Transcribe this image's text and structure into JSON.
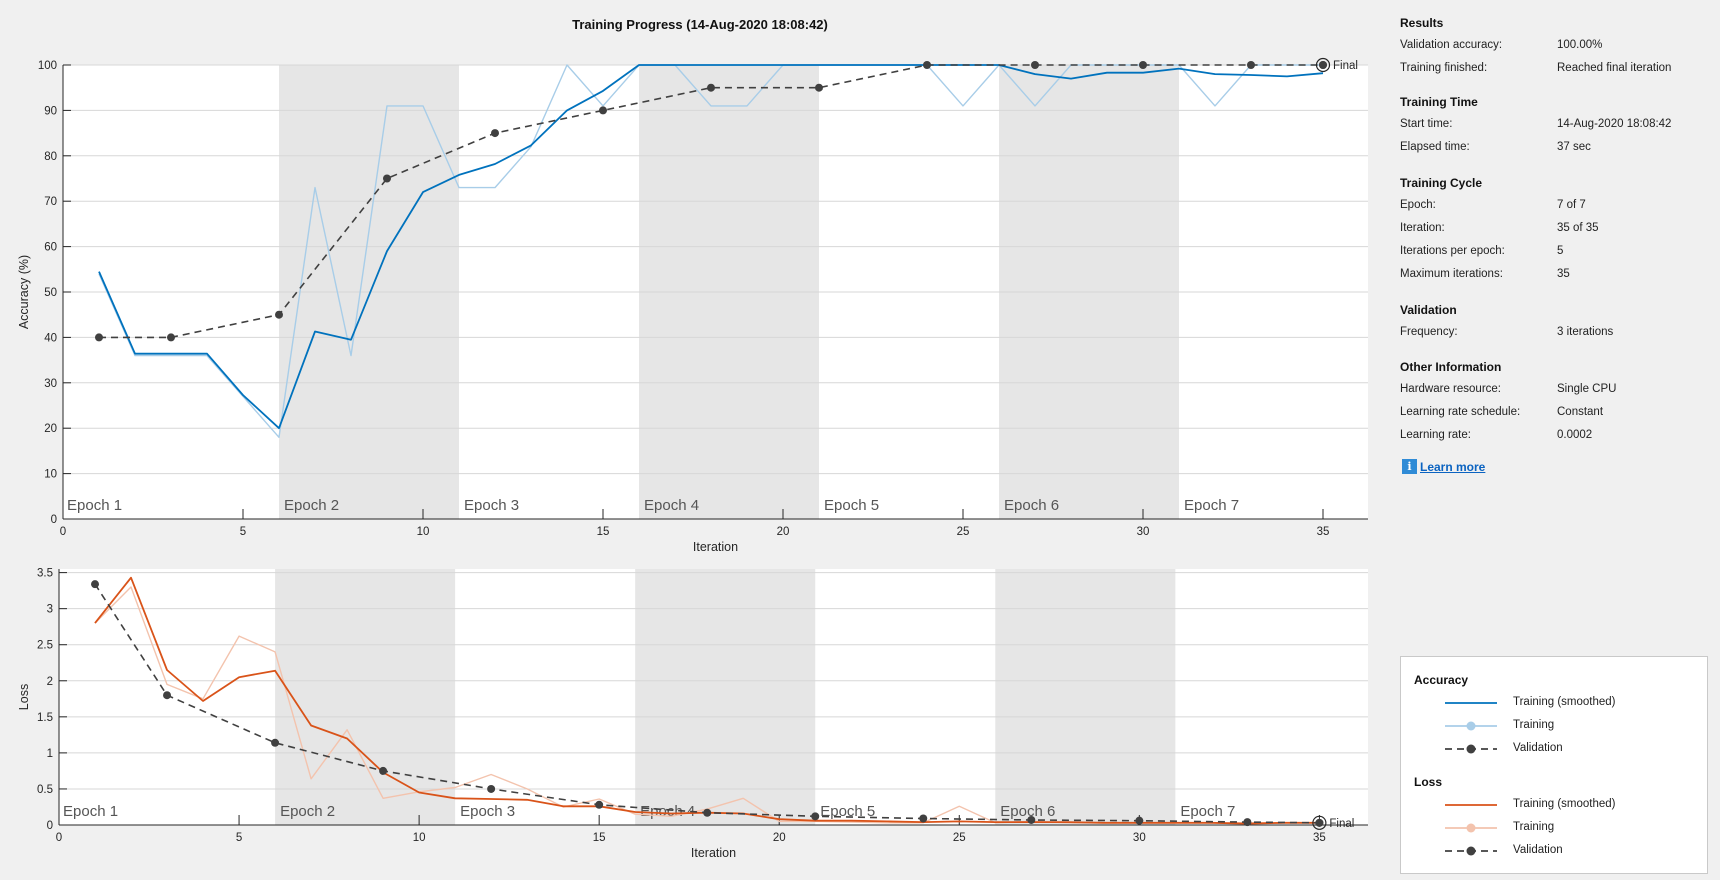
{
  "title": "Training Progress (14-Aug-2020 18:08:42)",
  "colors": {
    "accuracy_smoothed": "#0072bd",
    "accuracy_raw": "#a8cde8",
    "loss_smoothed": "#d95319",
    "loss_raw": "#f3c3ad",
    "validation": "#404040",
    "epoch_shade": "#e6e6e6"
  },
  "panel": {
    "sections": [
      {
        "title": "Results",
        "rows": [
          {
            "label": "Validation accuracy:",
            "value": "100.00%"
          },
          {
            "label": "Training finished:",
            "value": "Reached final iteration"
          }
        ]
      },
      {
        "title": "Training Time",
        "rows": [
          {
            "label": "Start time:",
            "value": "14-Aug-2020 18:08:42"
          },
          {
            "label": "Elapsed time:",
            "value": "37 sec"
          }
        ]
      },
      {
        "title": "Training Cycle",
        "rows": [
          {
            "label": "Epoch:",
            "value": "7 of 7"
          },
          {
            "label": "Iteration:",
            "value": "35 of 35"
          },
          {
            "label": "Iterations per epoch:",
            "value": "5"
          },
          {
            "label": "Maximum iterations:",
            "value": "35"
          }
        ]
      },
      {
        "title": "Validation",
        "rows": [
          {
            "label": "Frequency:",
            "value": "3 iterations"
          }
        ]
      },
      {
        "title": "Other Information",
        "rows": [
          {
            "label": "Hardware resource:",
            "value": "Single CPU"
          },
          {
            "label": "Learning rate schedule:",
            "value": "Constant"
          },
          {
            "label": "Learning rate:",
            "value": "0.0002"
          }
        ]
      }
    ],
    "learn_more": "Learn more",
    "info_icon": "info-icon"
  },
  "legend": {
    "groups": [
      {
        "title": "Accuracy",
        "items": [
          {
            "label": "Training (smoothed)",
            "style": "acc-smooth"
          },
          {
            "label": "Training",
            "style": "acc-raw"
          },
          {
            "label": "Validation",
            "style": "val"
          }
        ]
      },
      {
        "title": "Loss",
        "items": [
          {
            "label": "Training (smoothed)",
            "style": "loss-smooth"
          },
          {
            "label": "Training",
            "style": "loss-raw"
          },
          {
            "label": "Validation",
            "style": "val"
          }
        ]
      }
    ]
  },
  "chart_data": [
    {
      "type": "line",
      "id": "accuracy",
      "xlabel": "Iteration",
      "ylabel": "Accuracy (%)",
      "xlim": [
        0,
        36.25
      ],
      "ylim": [
        0,
        100
      ],
      "xticks": [
        0,
        5,
        10,
        15,
        20,
        25,
        30,
        35
      ],
      "yticks": [
        0,
        10,
        20,
        30,
        40,
        50,
        60,
        70,
        80,
        90,
        100
      ],
      "grid": true,
      "epochs": [
        "Epoch 1",
        "Epoch 2",
        "Epoch 3",
        "Epoch 4",
        "Epoch 5",
        "Epoch 6",
        "Epoch 7"
      ],
      "final_label": "Final",
      "series": [
        {
          "name": "Training",
          "style": "raw",
          "x": [
            1,
            2,
            3,
            4,
            5,
            6,
            7,
            8,
            9,
            10,
            11,
            12,
            13,
            14,
            15,
            16,
            17,
            18,
            19,
            20,
            21,
            22,
            23,
            24,
            25,
            26,
            27,
            28,
            29,
            30,
            31,
            32,
            33,
            34,
            35
          ],
          "y": [
            54,
            36,
            36,
            36,
            27,
            18,
            73,
            36,
            91,
            91,
            73,
            73,
            82,
            100,
            91,
            100,
            100,
            91,
            91,
            100,
            100,
            100,
            100,
            100,
            91,
            100,
            91,
            100,
            100,
            100,
            100,
            91,
            100,
            100,
            100
          ]
        },
        {
          "name": "Training (smoothed)",
          "style": "smooth",
          "x": [
            1,
            2,
            3,
            4,
            5,
            6,
            7,
            8,
            9,
            10,
            11,
            12,
            13,
            14,
            15,
            16,
            17,
            18,
            19,
            20,
            21,
            22,
            23,
            24,
            25,
            26,
            27,
            28,
            29,
            30,
            31,
            32,
            33,
            34,
            35
          ],
          "y": [
            54.5,
            36.4,
            36.4,
            36.4,
            27.3,
            20,
            41.3,
            39.5,
            59,
            72,
            75.8,
            78.2,
            82.3,
            90,
            94.3,
            100,
            100,
            100,
            100,
            100,
            100,
            100,
            100,
            100,
            100,
            100,
            98,
            97,
            98.3,
            98.3,
            99.2,
            98,
            97.8,
            97.5,
            98.2
          ]
        },
        {
          "name": "Validation",
          "style": "val",
          "x": [
            1,
            3,
            6,
            9,
            12,
            15,
            18,
            21,
            24,
            27,
            30,
            33,
            35
          ],
          "y": [
            40,
            40,
            45,
            75,
            85,
            90,
            95,
            95,
            100,
            100,
            100,
            100,
            100
          ]
        }
      ]
    },
    {
      "type": "line",
      "id": "loss",
      "xlabel": "Iteration",
      "ylabel": "Loss",
      "xlim": [
        0,
        36.35
      ],
      "ylim": [
        0,
        3.55
      ],
      "xticks": [
        0,
        5,
        10,
        15,
        20,
        25,
        30,
        35
      ],
      "yticks": [
        0,
        0.5,
        1,
        1.5,
        2,
        2.5,
        3,
        3.5
      ],
      "grid": true,
      "epochs": [
        "Epoch 1",
        "Epoch 2",
        "Epoch 3",
        "Epoch 4",
        "Epoch 5",
        "Epoch 6",
        "Epoch 7"
      ],
      "final_label": "Final",
      "series": [
        {
          "name": "Training",
          "style": "raw",
          "x": [
            1,
            2,
            3,
            4,
            5,
            6,
            7,
            8,
            9,
            10,
            11,
            12,
            13,
            14,
            15,
            16,
            17,
            18,
            19,
            20,
            21,
            22,
            23,
            24,
            25,
            26,
            27,
            28,
            29,
            30,
            31,
            32,
            33,
            34,
            35
          ],
          "y": [
            2.8,
            3.3,
            1.95,
            1.75,
            2.62,
            2.4,
            0.64,
            1.32,
            0.37,
            0.46,
            0.52,
            0.7,
            0.5,
            0.25,
            0.36,
            0.15,
            0.12,
            0.22,
            0.37,
            0.05,
            0.05,
            0.04,
            0.03,
            0.03,
            0.26,
            0.03,
            0.05,
            0.03,
            0.03,
            0.03,
            0.03,
            0.03,
            0.03,
            0.03,
            0.03
          ]
        },
        {
          "name": "Training (smoothed)",
          "style": "smooth",
          "x": [
            1,
            2,
            3,
            4,
            5,
            6,
            7,
            8,
            9,
            10,
            11,
            12,
            13,
            14,
            15,
            16,
            17,
            18,
            19,
            20,
            21,
            22,
            23,
            24,
            25,
            26,
            27,
            28,
            29,
            30,
            31,
            32,
            33,
            34,
            35
          ],
          "y": [
            2.8,
            3.43,
            2.15,
            1.72,
            2.05,
            2.14,
            1.38,
            1.2,
            0.73,
            0.45,
            0.37,
            0.36,
            0.35,
            0.26,
            0.26,
            0.18,
            0.16,
            0.17,
            0.16,
            0.08,
            0.06,
            0.06,
            0.05,
            0.04,
            0.05,
            0.04,
            0.04,
            0.04,
            0.03,
            0.03,
            0.03,
            0.03,
            0.02,
            0.03,
            0.03
          ]
        },
        {
          "name": "Validation",
          "style": "val",
          "x": [
            1,
            3,
            6,
            9,
            12,
            15,
            18,
            21,
            24,
            27,
            30,
            33,
            35
          ],
          "y": [
            3.34,
            1.8,
            1.14,
            0.75,
            0.5,
            0.28,
            0.17,
            0.12,
            0.09,
            0.07,
            0.06,
            0.04,
            0.03
          ]
        }
      ]
    }
  ]
}
